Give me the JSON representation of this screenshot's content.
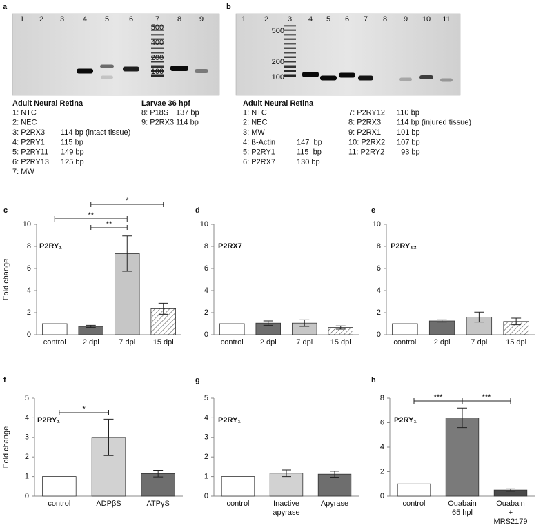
{
  "chart_data": [
    {
      "type": "bar",
      "panel": "c",
      "label": "P2RY₁",
      "ylabel": "Fold change",
      "categories": [
        "control",
        "2 dpl",
        "7 dpl",
        "15 dpl"
      ],
      "values": [
        1,
        0.75,
        7.35,
        2.35
      ],
      "errors": [
        0,
        0.1,
        1.6,
        0.5
      ],
      "colors": [
        "#ffffff",
        "#6e6e6e",
        "#c6c6c6",
        "#ffffff"
      ],
      "hatched": [
        false,
        false,
        false,
        true
      ],
      "ylim": [
        0,
        10
      ],
      "yticks": [
        0,
        2,
        4,
        6,
        8,
        10
      ],
      "brackets": [
        {
          "from": 1,
          "to": 3,
          "label": "*"
        },
        {
          "from": 0,
          "to": 2,
          "label": "**"
        },
        {
          "from": 1,
          "to": 2,
          "label": "**"
        }
      ]
    },
    {
      "type": "bar",
      "panel": "d",
      "label": "P2RX7",
      "categories": [
        "control",
        "2 dpl",
        "7 dpl",
        "15 dpl"
      ],
      "values": [
        1,
        1.05,
        1.05,
        0.65
      ],
      "errors": [
        0,
        0.2,
        0.3,
        0.15
      ],
      "colors": [
        "#ffffff",
        "#6e6e6e",
        "#c6c6c6",
        "#ffffff"
      ],
      "hatched": [
        false,
        false,
        false,
        true
      ],
      "ylim": [
        0,
        10
      ],
      "yticks": [
        0,
        2,
        4,
        6,
        8,
        10
      ]
    },
    {
      "type": "bar",
      "panel": "e",
      "label": "P2RY₁₂",
      "categories": [
        "control",
        "2 dpl",
        "7 dpl",
        "15 dpl"
      ],
      "values": [
        1,
        1.25,
        1.6,
        1.2
      ],
      "errors": [
        0,
        0.1,
        0.45,
        0.3
      ],
      "colors": [
        "#ffffff",
        "#6e6e6e",
        "#c6c6c6",
        "#ffffff"
      ],
      "hatched": [
        false,
        false,
        false,
        true
      ],
      "ylim": [
        0,
        10
      ],
      "yticks": [
        0,
        2,
        4,
        6,
        8,
        10
      ]
    },
    {
      "type": "bar",
      "panel": "f",
      "label": "P2RY₁",
      "ylabel": "Fold change",
      "categories": [
        "control",
        "ADPβS",
        "ATPγS"
      ],
      "values": [
        1,
        3.0,
        1.15
      ],
      "errors": [
        0,
        0.93,
        0.17
      ],
      "colors": [
        "#ffffff",
        "#d2d2d2",
        "#6e6e6e"
      ],
      "hatched": [
        false,
        false,
        false
      ],
      "ylim": [
        0,
        5
      ],
      "yticks": [
        0,
        1,
        2,
        3,
        4,
        5
      ],
      "brackets": [
        {
          "from": 0,
          "to": 1,
          "label": "*"
        }
      ]
    },
    {
      "type": "bar",
      "panel": "g",
      "label": "P2RY₁",
      "categories": [
        "control",
        "Inactive\napyrase",
        "Apyrase"
      ],
      "values": [
        1,
        1.17,
        1.12
      ],
      "errors": [
        0,
        0.17,
        0.15
      ],
      "colors": [
        "#ffffff",
        "#d2d2d2",
        "#6e6e6e"
      ],
      "hatched": [
        false,
        false,
        false
      ],
      "ylim": [
        0,
        5
      ],
      "yticks": [
        0,
        1,
        2,
        3,
        4,
        5
      ]
    },
    {
      "type": "bar",
      "panel": "h",
      "label": "P2RY₁",
      "categories": [
        "control",
        "Ouabain\n65 hpl",
        "Ouabain\n+\nMRS2179"
      ],
      "values": [
        1,
        6.4,
        0.5
      ],
      "errors": [
        0,
        0.8,
        0.1
      ],
      "colors": [
        "#ffffff",
        "#7a7a7a",
        "#4a4a4a"
      ],
      "hatched": [
        false,
        false,
        false
      ],
      "ylim": [
        0,
        8
      ],
      "yticks": [
        0,
        2,
        4,
        6,
        8
      ],
      "brackets": [
        {
          "from": 0,
          "to": 1,
          "label": "***"
        },
        {
          "from": 1,
          "to": 2,
          "label": "***"
        }
      ]
    }
  ],
  "gels": [
    {
      "panel": "a",
      "lanes": [
        "1",
        "2",
        "3",
        "4",
        "5",
        "6",
        "7",
        "8",
        "9"
      ],
      "ladder": [
        "500",
        "400",
        "200",
        "100"
      ],
      "legend": [
        {
          "heading": "Adult Neural Retina",
          "items": [
            {
              "label": "1: NTC"
            },
            {
              "label": "2: NEC"
            },
            {
              "label": "3: P2RX3",
              "size": "114 bp (intact tissue)"
            },
            {
              "label": "4: P2RY1",
              "size": "115 bp"
            },
            {
              "label": "5: P2RY11",
              "size": "149 bp"
            },
            {
              "label": "6: P2RY13",
              "size": "125 bp"
            },
            {
              "label": "7: MW"
            }
          ]
        },
        {
          "heading": "Larvae 36 hpf",
          "items": [
            {
              "label": "8: P18S",
              "size": "137 bp"
            },
            {
              "label": "9: P2RX3",
              "size": "114 bp"
            }
          ]
        }
      ]
    },
    {
      "panel": "b",
      "lanes": [
        "1",
        "2",
        "3",
        "4",
        "5",
        "6",
        "7",
        "8",
        "9",
        "10",
        "11"
      ],
      "ladder": [
        "500",
        "200",
        "100"
      ],
      "legend": [
        {
          "heading": "Adult Neural Retina",
          "items": [
            {
              "label": "1: NTC"
            },
            {
              "label": "2: NEC"
            },
            {
              "label": "3: MW"
            },
            {
              "label": "4: ß-Actin",
              "size": "147  bp"
            },
            {
              "label": "5: P2RY1",
              "size": "115  bp"
            },
            {
              "label": "6: P2RX7",
              "size": "130 bp"
            }
          ]
        },
        {
          "items": [
            {
              "label": "7: P2RY12",
              "size": "110 bp"
            },
            {
              "label": "8: P2RX3",
              "size": "114 bp (injured tissue)"
            },
            {
              "label": "9: P2RX1",
              "size": "101 bp"
            },
            {
              "label": "10: P2RX2",
              "size": "107 bp"
            },
            {
              "label": "11: P2RY2",
              "size": "  93 bp"
            }
          ]
        }
      ]
    }
  ]
}
